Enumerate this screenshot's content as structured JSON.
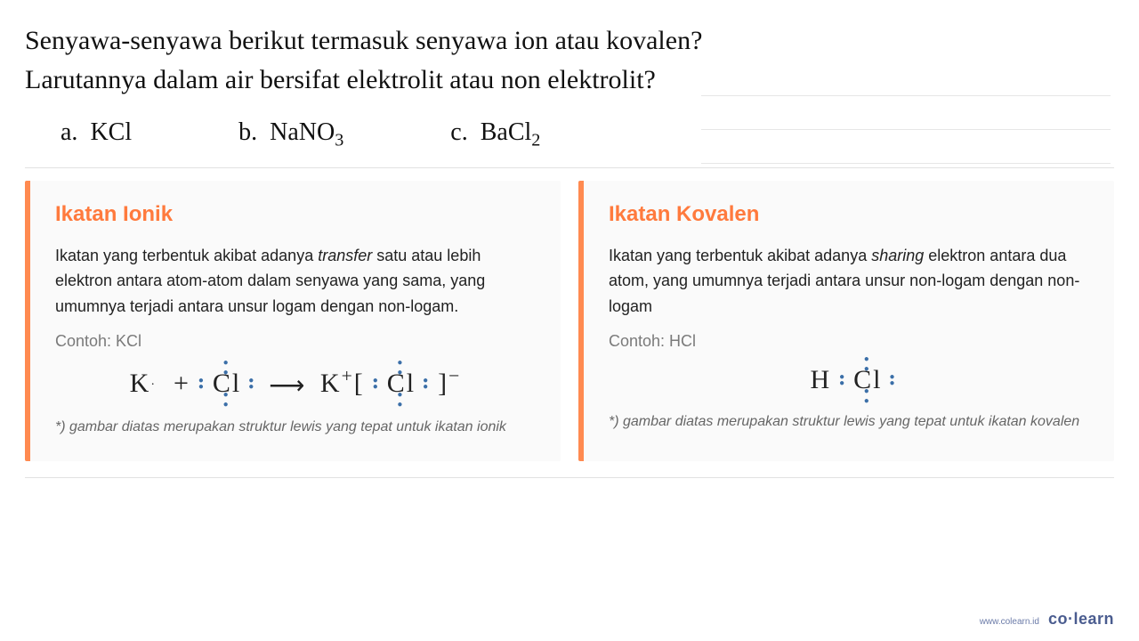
{
  "question": "Senyawa-senyawa berikut termasuk senyawa ion atau kovalen? Larutannya dalam air bersifat elektrolit atau non elektrolit?",
  "options": [
    {
      "letter": "a.",
      "formula_html": "KCl"
    },
    {
      "letter": "b.",
      "formula_html": "NaNO<sub>3</sub>"
    },
    {
      "letter": "c.",
      "formula_html": "BaCl<sub>2</sub>"
    }
  ],
  "cards": {
    "ionic": {
      "title": "Ikatan Ionik",
      "desc_html": "Ikatan yang terbentuk akibat adanya <em>transfer</em> satu atau lebih elektron antara atom-atom dalam senyawa yang sama, yang umumnya terjadi antara unsur logam dengan non-logam.",
      "contoh": "Contoh: KCl",
      "note": "*) gambar diatas merupakan struktur lewis yang tepat untuk ikatan ionik"
    },
    "covalent": {
      "title": "Ikatan Kovalen",
      "desc_html": "Ikatan yang terbentuk akibat adanya <em>sharing</em> elektron antara dua atom, yang umumnya terjadi antara unsur non-logam dengan non-logam",
      "contoh": "Contoh: HCl",
      "note": "*) gambar diatas merupakan struktur lewis yang tepat untuk ikatan kovalen"
    }
  },
  "footer": {
    "url": "www.colearn.id",
    "brand": "co·learn"
  },
  "colors": {
    "accent": "#ff7a3d",
    "card_border": "#ff8a50",
    "card_bg": "#fafafa",
    "text": "#111111",
    "muted": "#7a7a7a",
    "dot_blue": "#3b6fa8",
    "line": "#e2e2e2",
    "brand": "#4a5c8f"
  },
  "lewis": {
    "ionic": "K· + :Cl: → K⁺[ :Cl: ]⁻",
    "covalent": "H :Cl:"
  }
}
